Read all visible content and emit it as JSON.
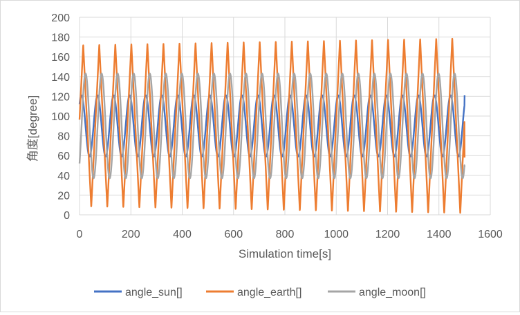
{
  "chart_data": {
    "type": "line",
    "xlabel": "Simulation time[s]",
    "ylabel": "角度[degree]",
    "xlim": [
      0,
      1600
    ],
    "ylim": [
      0,
      200
    ],
    "x_ticks": [
      "0",
      "200",
      "400",
      "600",
      "800",
      "1000",
      "1200",
      "1400",
      "1600"
    ],
    "y_ticks": [
      "0",
      "20",
      "40",
      "60",
      "80",
      "100",
      "120",
      "140",
      "160",
      "180",
      "200"
    ],
    "grid": true,
    "legend_position": "bottom",
    "x_range": [
      0,
      1500
    ],
    "series": [
      {
        "name": "angle_sun[]",
        "color": "#4472c4",
        "shape": "sine",
        "period": 62.5,
        "min": 59,
        "max": 121,
        "start": 112,
        "end": 121
      },
      {
        "name": "angle_earth[]",
        "color": "#ed7d31",
        "shape": "triangle",
        "period": 62.5,
        "min": 8,
        "max": 172,
        "start": 100,
        "end": 58,
        "max_at_end": 179,
        "min_at_end": 1
      },
      {
        "name": "angle_moon[]",
        "color": "#a5a5a5",
        "shape": "sine",
        "period": 62.5,
        "min": 37,
        "max": 143,
        "start": 52,
        "end": 48
      }
    ]
  }
}
